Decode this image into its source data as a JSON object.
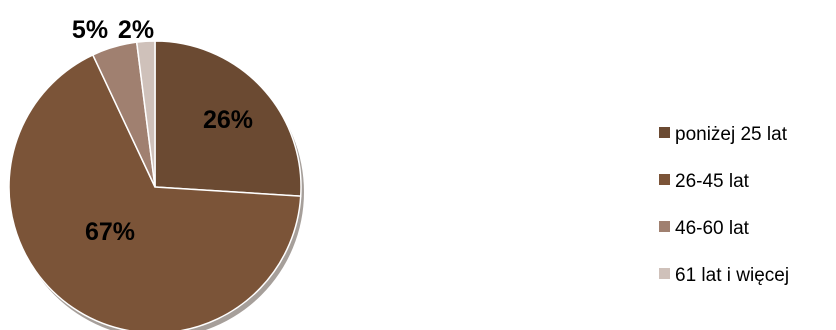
{
  "chart_data": {
    "type": "pie",
    "categories": [
      "poniżej 25 lat",
      "26-45 lat",
      "46-60 lat",
      "61 lat i więcej"
    ],
    "values": [
      26,
      67,
      5,
      2
    ],
    "value_labels": [
      "26%",
      "67%",
      "5%",
      "2%"
    ],
    "colors": [
      "#6b4a32",
      "#7b5438",
      "#a08070",
      "#cfc1ba"
    ],
    "legend_position": "right"
  }
}
